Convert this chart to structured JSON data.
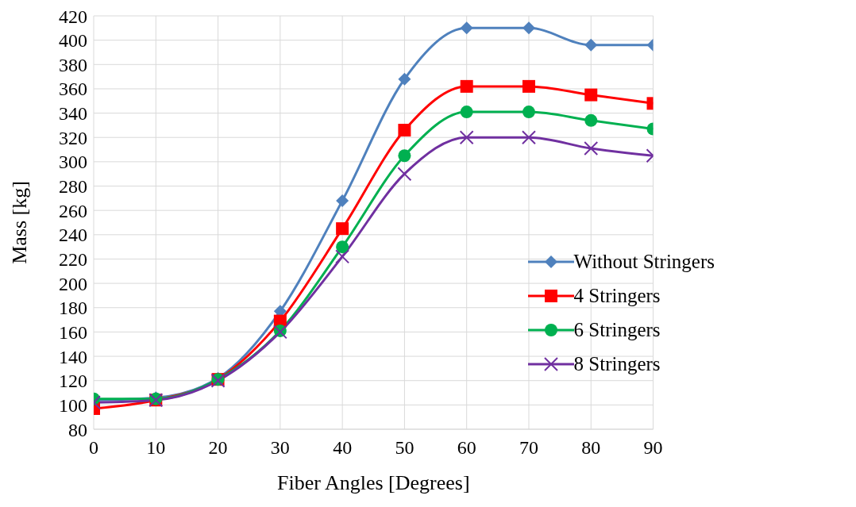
{
  "chart_data": {
    "type": "line",
    "xlabel": "Fiber Angles [Degrees]",
    "ylabel": "Mass [kg]",
    "x": [
      0,
      10,
      20,
      30,
      40,
      50,
      60,
      70,
      80,
      90
    ],
    "xlim": [
      0,
      90
    ],
    "xticks": [
      0,
      10,
      20,
      30,
      40,
      50,
      60,
      70,
      80,
      90
    ],
    "ylim": [
      80,
      420
    ],
    "yticks": [
      80,
      100,
      120,
      140,
      160,
      180,
      200,
      220,
      240,
      260,
      280,
      300,
      320,
      340,
      360,
      380,
      400,
      420
    ],
    "grid": true,
    "legend": "right",
    "line_style": "solid",
    "series": [
      {
        "name": "Without Stringers",
        "color": "#4f81bd",
        "marker": "diamond",
        "values": [
          104,
          106,
          122,
          177,
          268,
          368,
          410,
          410,
          396,
          396
        ]
      },
      {
        "name": "4 Stringers",
        "color": "#ff0000",
        "marker": "square",
        "values": [
          97,
          104,
          121,
          169,
          245,
          326,
          362,
          362,
          355,
          348
        ]
      },
      {
        "name": "6 Stringers",
        "color": "#00b050",
        "marker": "circle",
        "values": [
          105,
          105,
          121,
          161,
          230,
          305,
          341,
          341,
          334,
          327
        ]
      },
      {
        "name": "8 Stringers",
        "color": "#7030a0",
        "marker": "cross",
        "values": [
          102,
          104,
          120,
          160,
          222,
          290,
          320,
          320,
          311,
          305
        ]
      }
    ]
  }
}
